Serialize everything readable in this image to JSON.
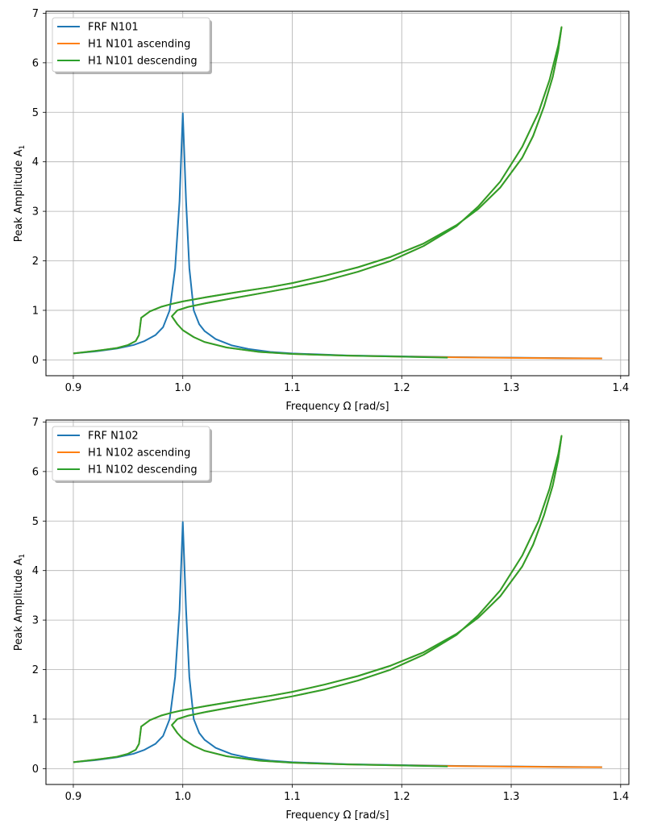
{
  "chart_data": [
    {
      "type": "line",
      "xlabel": "Frequency Ω [rad/s]",
      "ylabel": "Peak Amplitude A",
      "ylabel_subscript": "1",
      "xlim": [
        0.875,
        1.4075
      ],
      "ylim": [
        -0.32,
        7.04
      ],
      "xticks": [
        "0.9",
        "1.0",
        "1.1",
        "1.2",
        "1.3",
        "1.4"
      ],
      "yticks": [
        "0",
        "1",
        "2",
        "3",
        "4",
        "5",
        "6",
        "7"
      ],
      "grid": true,
      "legend_position": "top-left",
      "series": [
        {
          "name": "FRF N101",
          "color": "#1f77b4",
          "x": [
            0.9,
            0.92,
            0.94,
            0.955,
            0.965,
            0.975,
            0.982,
            0.988,
            0.993,
            0.997,
            1.0,
            1.003,
            1.006,
            1.01,
            1.015,
            1.02,
            1.03,
            1.045,
            1.06,
            1.08,
            1.1,
            1.15,
            1.2,
            1.25,
            1.3,
            1.35,
            1.383
          ],
          "y": [
            0.13,
            0.17,
            0.23,
            0.3,
            0.38,
            0.5,
            0.66,
            1.0,
            1.85,
            3.2,
            4.98,
            3.2,
            1.85,
            1.0,
            0.72,
            0.58,
            0.42,
            0.29,
            0.22,
            0.16,
            0.13,
            0.09,
            0.07,
            0.055,
            0.045,
            0.035,
            0.03
          ]
        },
        {
          "name": "H1 N101 ascending",
          "color": "#ff7f0e",
          "x": [
            0.9,
            0.92,
            0.94,
            0.95,
            0.957,
            0.96,
            0.962,
            0.97,
            0.98,
            0.99,
            1.0,
            1.02,
            1.05,
            1.08,
            1.1,
            1.13,
            1.16,
            1.19,
            1.22,
            1.25,
            1.27,
            1.29,
            1.31,
            1.32,
            1.33,
            1.338,
            1.343,
            1.346,
            1.343,
            1.335,
            1.325,
            1.31,
            1.29,
            1.27,
            1.25,
            1.22,
            1.19,
            1.16,
            1.13,
            1.1,
            1.07,
            1.04,
            1.02,
            1.005,
            0.995,
            0.99,
            0.995,
            1.0,
            1.01,
            1.02,
            1.04,
            1.07,
            1.1,
            1.15,
            1.2,
            1.25,
            1.3,
            1.35,
            1.383
          ],
          "y": [
            0.13,
            0.18,
            0.24,
            0.3,
            0.38,
            0.5,
            0.85,
            0.98,
            1.07,
            1.13,
            1.18,
            1.26,
            1.37,
            1.47,
            1.55,
            1.7,
            1.87,
            2.08,
            2.35,
            2.72,
            3.05,
            3.48,
            4.08,
            4.52,
            5.12,
            5.72,
            6.25,
            6.72,
            6.35,
            5.65,
            5.0,
            4.3,
            3.6,
            3.1,
            2.7,
            2.3,
            2.0,
            1.78,
            1.6,
            1.46,
            1.34,
            1.22,
            1.14,
            1.07,
            1.0,
            0.88,
            0.72,
            0.6,
            0.46,
            0.36,
            0.25,
            0.16,
            0.12,
            0.085,
            0.065,
            0.05,
            0.04,
            0.033,
            0.028
          ]
        },
        {
          "name": "H1 N101 descending",
          "color": "#2ca02c",
          "x": [
            1.242,
            1.2,
            1.15,
            1.1,
            1.07,
            1.04,
            1.02,
            1.01,
            1.0,
            0.995,
            0.99,
            0.995,
            1.005,
            1.02,
            1.04,
            1.07,
            1.1,
            1.13,
            1.16,
            1.19,
            1.22,
            1.25,
            1.27,
            1.29,
            1.31,
            1.325,
            1.335,
            1.343,
            1.346,
            1.343,
            1.338,
            1.33,
            1.32,
            1.31,
            1.29,
            1.27,
            1.25,
            1.22,
            1.19,
            1.16,
            1.13,
            1.1,
            1.08,
            1.05,
            1.02,
            1.0,
            0.99,
            0.98,
            0.97,
            0.962,
            0.96,
            0.957,
            0.95,
            0.94,
            0.92,
            0.9
          ],
          "y": [
            0.045,
            0.065,
            0.085,
            0.12,
            0.16,
            0.25,
            0.36,
            0.46,
            0.6,
            0.72,
            0.88,
            1.0,
            1.07,
            1.14,
            1.22,
            1.34,
            1.46,
            1.6,
            1.78,
            2.0,
            2.3,
            2.7,
            3.1,
            3.6,
            4.3,
            5.0,
            5.65,
            6.35,
            6.72,
            6.25,
            5.72,
            5.12,
            4.52,
            4.08,
            3.48,
            3.05,
            2.72,
            2.35,
            2.08,
            1.87,
            1.7,
            1.55,
            1.47,
            1.37,
            1.26,
            1.18,
            1.13,
            1.07,
            0.98,
            0.85,
            0.5,
            0.38,
            0.3,
            0.24,
            0.18,
            0.13
          ]
        }
      ]
    },
    {
      "type": "line",
      "xlabel": "Frequency Ω [rad/s]",
      "ylabel": "Peak Amplitude A",
      "ylabel_subscript": "1",
      "xlim": [
        0.875,
        1.4075
      ],
      "ylim": [
        -0.32,
        7.04
      ],
      "xticks": [
        "0.9",
        "1.0",
        "1.1",
        "1.2",
        "1.3",
        "1.4"
      ],
      "yticks": [
        "0",
        "1",
        "2",
        "3",
        "4",
        "5",
        "6",
        "7"
      ],
      "grid": true,
      "legend_position": "top-left",
      "series": [
        {
          "name": "FRF N102",
          "color": "#1f77b4",
          "x": [
            0.9,
            0.92,
            0.94,
            0.955,
            0.965,
            0.975,
            0.982,
            0.988,
            0.993,
            0.997,
            1.0,
            1.003,
            1.006,
            1.01,
            1.015,
            1.02,
            1.03,
            1.045,
            1.06,
            1.08,
            1.1,
            1.15,
            1.2,
            1.25,
            1.3,
            1.35,
            1.383
          ],
          "y": [
            0.13,
            0.17,
            0.23,
            0.3,
            0.38,
            0.5,
            0.66,
            1.0,
            1.85,
            3.2,
            4.98,
            3.2,
            1.85,
            1.0,
            0.72,
            0.58,
            0.42,
            0.29,
            0.22,
            0.16,
            0.13,
            0.09,
            0.07,
            0.055,
            0.045,
            0.035,
            0.03
          ]
        },
        {
          "name": "H1 N102 ascending",
          "color": "#ff7f0e",
          "x": [
            0.9,
            0.92,
            0.94,
            0.95,
            0.957,
            0.96,
            0.962,
            0.97,
            0.98,
            0.99,
            1.0,
            1.02,
            1.05,
            1.08,
            1.1,
            1.13,
            1.16,
            1.19,
            1.22,
            1.25,
            1.27,
            1.29,
            1.31,
            1.32,
            1.33,
            1.338,
            1.343,
            1.346,
            1.343,
            1.335,
            1.325,
            1.31,
            1.29,
            1.27,
            1.25,
            1.22,
            1.19,
            1.16,
            1.13,
            1.1,
            1.07,
            1.04,
            1.02,
            1.005,
            0.995,
            0.99,
            0.995,
            1.0,
            1.01,
            1.02,
            1.04,
            1.07,
            1.1,
            1.15,
            1.2,
            1.25,
            1.3,
            1.35,
            1.383
          ],
          "y": [
            0.13,
            0.18,
            0.24,
            0.3,
            0.38,
            0.5,
            0.85,
            0.98,
            1.07,
            1.13,
            1.18,
            1.26,
            1.37,
            1.47,
            1.55,
            1.7,
            1.87,
            2.08,
            2.35,
            2.72,
            3.05,
            3.48,
            4.08,
            4.52,
            5.12,
            5.72,
            6.25,
            6.72,
            6.35,
            5.65,
            5.0,
            4.3,
            3.6,
            3.1,
            2.7,
            2.3,
            2.0,
            1.78,
            1.6,
            1.46,
            1.34,
            1.22,
            1.14,
            1.07,
            1.0,
            0.88,
            0.72,
            0.6,
            0.46,
            0.36,
            0.25,
            0.16,
            0.12,
            0.085,
            0.065,
            0.05,
            0.04,
            0.033,
            0.028
          ]
        },
        {
          "name": "H1 N102 descending",
          "color": "#2ca02c",
          "x": [
            1.242,
            1.2,
            1.15,
            1.1,
            1.07,
            1.04,
            1.02,
            1.01,
            1.0,
            0.995,
            0.99,
            0.995,
            1.005,
            1.02,
            1.04,
            1.07,
            1.1,
            1.13,
            1.16,
            1.19,
            1.22,
            1.25,
            1.27,
            1.29,
            1.31,
            1.325,
            1.335,
            1.343,
            1.346,
            1.343,
            1.338,
            1.33,
            1.32,
            1.31,
            1.29,
            1.27,
            1.25,
            1.22,
            1.19,
            1.16,
            1.13,
            1.1,
            1.08,
            1.05,
            1.02,
            1.0,
            0.99,
            0.98,
            0.97,
            0.962,
            0.96,
            0.957,
            0.95,
            0.94,
            0.92,
            0.9
          ],
          "y": [
            0.045,
            0.065,
            0.085,
            0.12,
            0.16,
            0.25,
            0.36,
            0.46,
            0.6,
            0.72,
            0.88,
            1.0,
            1.07,
            1.14,
            1.22,
            1.34,
            1.46,
            1.6,
            1.78,
            2.0,
            2.3,
            2.7,
            3.1,
            3.6,
            4.3,
            5.0,
            5.65,
            6.35,
            6.72,
            6.25,
            5.72,
            5.12,
            4.52,
            4.08,
            3.48,
            3.05,
            2.72,
            2.35,
            2.08,
            1.87,
            1.7,
            1.55,
            1.47,
            1.37,
            1.26,
            1.18,
            1.13,
            1.07,
            0.98,
            0.85,
            0.5,
            0.38,
            0.3,
            0.24,
            0.18,
            0.13
          ]
        }
      ]
    }
  ]
}
